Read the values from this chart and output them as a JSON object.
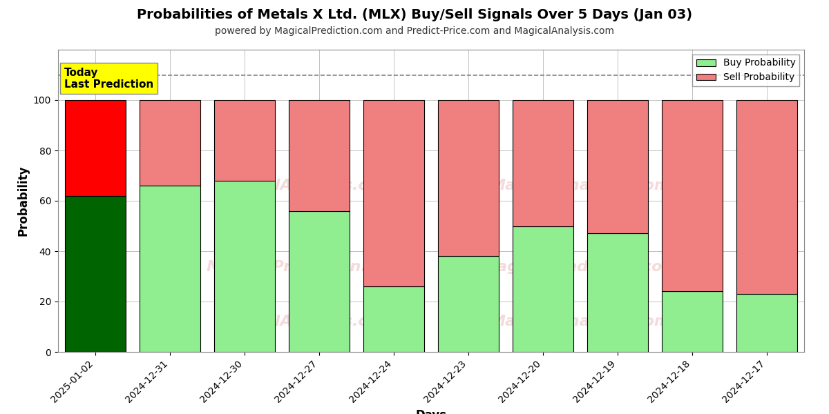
{
  "title": "Probabilities of Metals X Ltd. (MLX) Buy/Sell Signals Over 5 Days (Jan 03)",
  "subtitle": "powered by MagicalPrediction.com and Predict-Price.com and MagicalAnalysis.com",
  "xlabel": "Days",
  "ylabel": "Probability",
  "categories": [
    "2025-01-02",
    "2024-12-31",
    "2024-12-30",
    "2024-12-27",
    "2024-12-24",
    "2024-12-23",
    "2024-12-20",
    "2024-12-19",
    "2024-12-18",
    "2024-12-17"
  ],
  "buy_values": [
    62,
    66,
    68,
    56,
    26,
    38,
    50,
    47,
    24,
    23
  ],
  "sell_values": [
    38,
    34,
    32,
    44,
    74,
    62,
    50,
    53,
    76,
    77
  ],
  "first_bar_buy_color": "#006400",
  "first_bar_sell_color": "#FF0000",
  "buy_color": "#90EE90",
  "sell_color": "#F08080",
  "first_bar_annotation_bg": "#FFFF00",
  "first_bar_annotation_text": "Today\nLast Prediction",
  "annotation_fontsize": 11,
  "ylim": [
    0,
    120
  ],
  "yticks": [
    0,
    20,
    40,
    60,
    80,
    100
  ],
  "dashed_line_y": 110,
  "dashed_line_color": "#888888",
  "grid_color": "#aaaaaa",
  "title_fontsize": 14,
  "subtitle_fontsize": 10,
  "axis_label_fontsize": 12,
  "tick_fontsize": 10,
  "legend_fontsize": 10,
  "bar_edge_color": "#000000",
  "bar_linewidth": 0.8,
  "bar_width": 0.82
}
